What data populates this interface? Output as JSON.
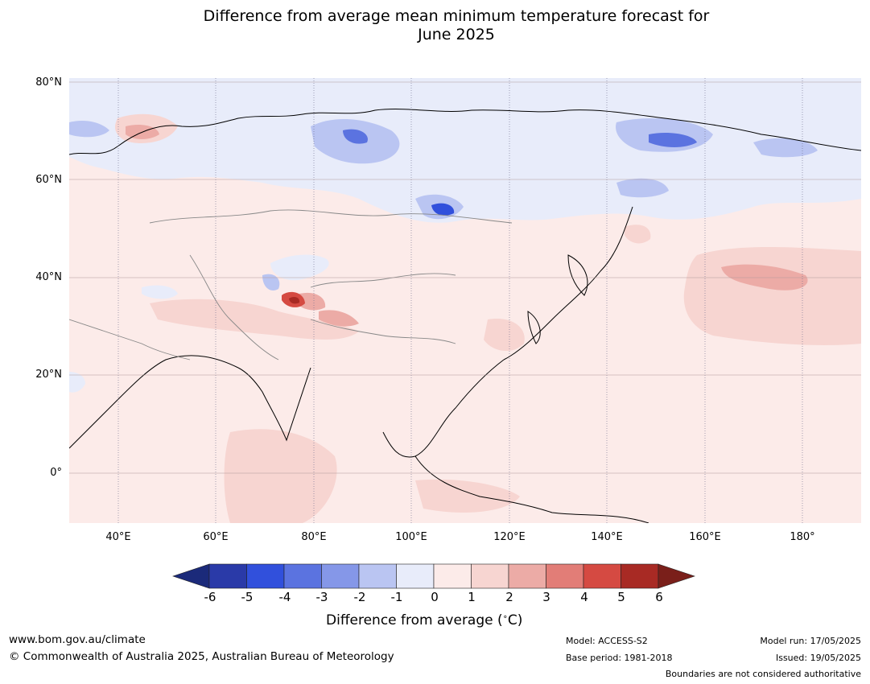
{
  "title": {
    "line1": "Difference from average mean minimum temperature forecast for",
    "line2": "June 2025"
  },
  "axes": {
    "lat_labels": [
      "80°N",
      "60°N",
      "40°N",
      "20°N",
      "0°"
    ],
    "lon_labels": [
      "40°E",
      "60°E",
      "80°E",
      "100°E",
      "120°E",
      "140°E",
      "160°E",
      "180°"
    ]
  },
  "colorbar": {
    "ticks": [
      "-6",
      "-5",
      "-4",
      "-3",
      "-2",
      "-1",
      "0",
      "1",
      "2",
      "3",
      "4",
      "5",
      "6"
    ],
    "colors": [
      "#2a3aa8",
      "#3150dc",
      "#5b73e0",
      "#8597e8",
      "#bac5f2",
      "#e8ecfa",
      "#fcebe9",
      "#f7d5d1",
      "#ecaba6",
      "#e27d77",
      "#d54a42",
      "#a82a24"
    ],
    "extend_low": "#1b2a7a",
    "extend_high": "#7a1f1a",
    "label": "Difference from average (°C)",
    "label_text": "Difference from average (",
    "label_unit": "∘",
    "label_end": "C)"
  },
  "footer": {
    "website": "www.bom.gov.au/climate",
    "copyright": "© Commonwealth of Australia 2025, Australian Bureau of Meteorology",
    "model": "Model: ACCESS-S2",
    "base_period": "Base period: 1981-2018",
    "model_run": "Model run: 17/05/2025",
    "issued": "Issued: 19/05/2025",
    "disclaimer": "Boundaries are not considered authoritative"
  },
  "map": {
    "lon_range": [
      30,
      192
    ],
    "lat_range": [
      -10,
      80
    ],
    "gridline_lons": [
      40,
      60,
      80,
      100,
      120,
      140,
      160,
      180
    ],
    "gridline_lats": [
      80,
      60,
      40,
      20,
      0
    ]
  }
}
